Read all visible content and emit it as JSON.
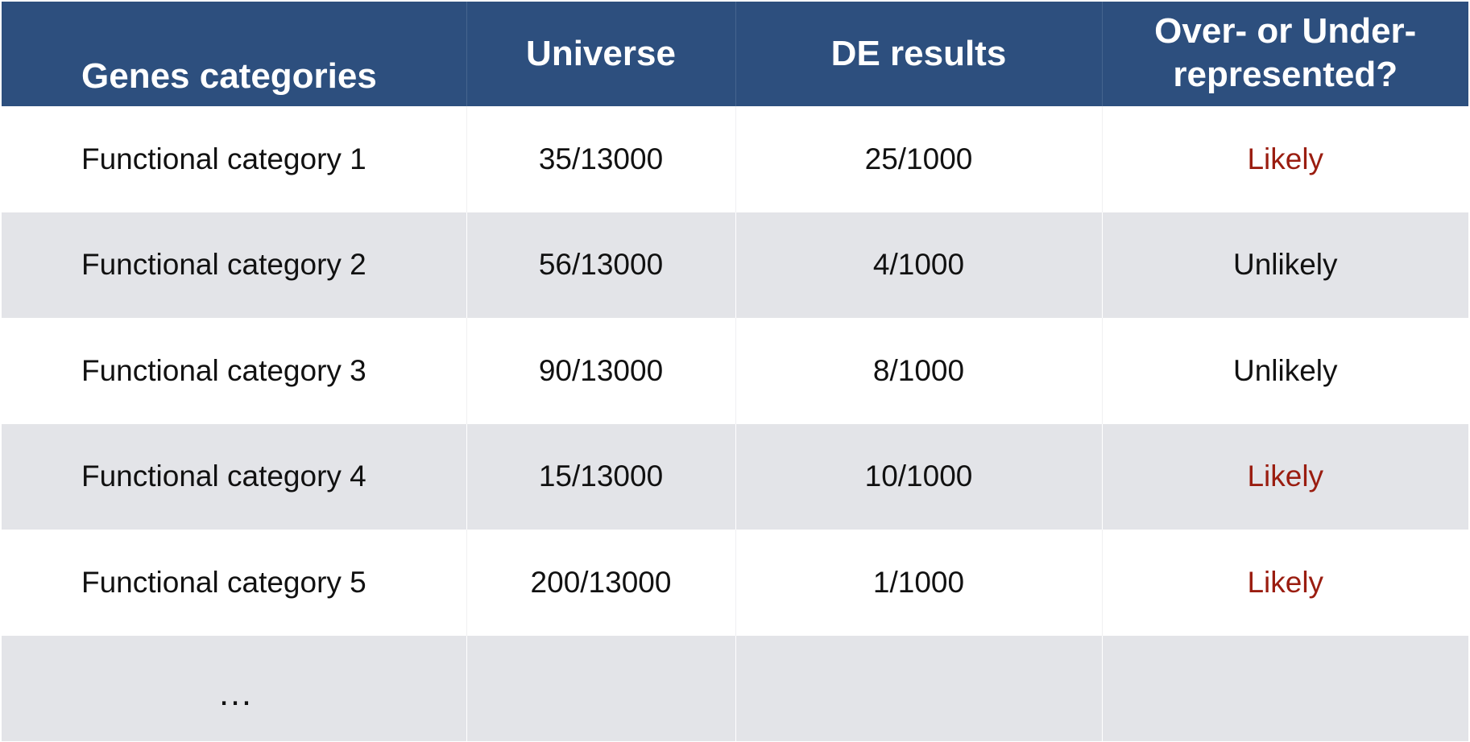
{
  "colors": {
    "header_bg": "#2d4f7e",
    "header_text": "#ffffff",
    "row_alt_bg": "#e3e4e8",
    "likely_text": "#9a1d10",
    "unlikely_text": "#111111"
  },
  "table": {
    "headers": {
      "category": "Genes categories",
      "universe": "Universe",
      "de_results": "DE results",
      "representation_line1": "Over- or Under-",
      "representation_line2": "represented?"
    },
    "rows": [
      {
        "category": "Functional category 1",
        "universe": "35/13000",
        "de_results": "25/1000",
        "verdict": "Likely"
      },
      {
        "category": "Functional category 2",
        "universe": "56/13000",
        "de_results": "4/1000",
        "verdict": "Unlikely"
      },
      {
        "category": "Functional category 3",
        "universe": "90/13000",
        "de_results": "8/1000",
        "verdict": "Unlikely"
      },
      {
        "category": "Functional category 4",
        "universe": "15/13000",
        "de_results": "10/1000",
        "verdict": "Likely"
      },
      {
        "category": "Functional category 5",
        "universe": "200/13000",
        "de_results": "1/1000",
        "verdict": "Likely"
      }
    ],
    "continuation": "…"
  }
}
